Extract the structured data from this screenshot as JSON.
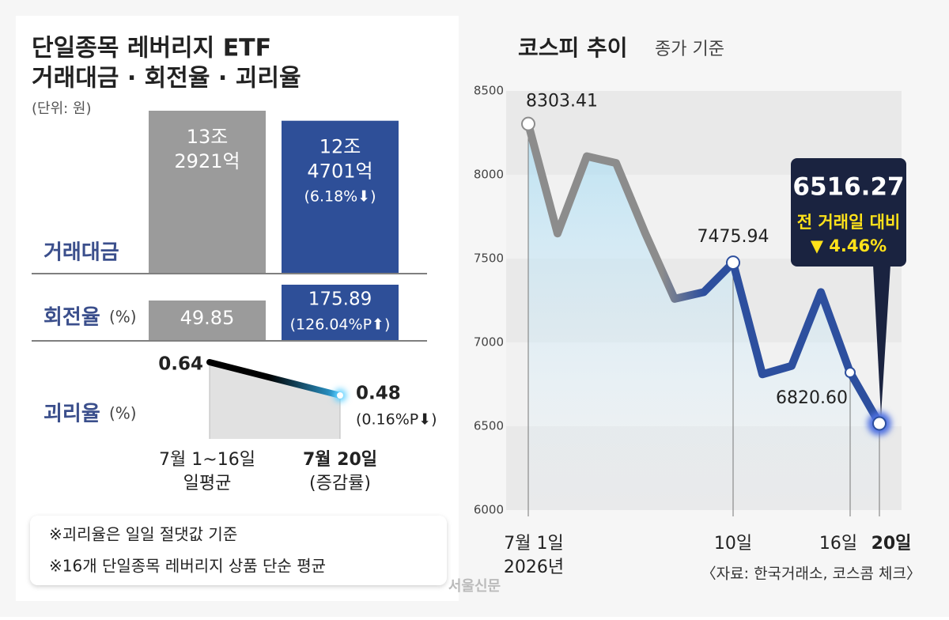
{
  "chart_data": [
    {
      "type": "comparison",
      "title": [
        "단일종목 레버리지 ETF",
        "거래대금 · 회전율 · 괴리율"
      ],
      "unit": "(단위: 원)",
      "categories": [
        [
          "7월 1~16일",
          "일평균"
        ],
        [
          "7월 20일",
          "(증감률)"
        ]
      ],
      "colors": [
        "#9b9b9b",
        "#2e4f98"
      ],
      "metrics": [
        {
          "name": "거래대금",
          "values": [
            132921,
            124701
          ],
          "value_labels": [
            [
              "13조",
              "2921억"
            ],
            [
              "12조",
              "4701억"
            ]
          ],
          "change": {
            "value": -6.18,
            "label": "(6.18%⬇)"
          }
        },
        {
          "name": "회전율",
          "unit": "(%)",
          "values": [
            49.85,
            175.89
          ],
          "change": {
            "value": 126.04,
            "label": "(126.04%P⬆)"
          }
        },
        {
          "name": "괴리율",
          "unit": "(%)",
          "values": [
            0.64,
            0.48
          ],
          "change": {
            "value": -0.16,
            "label": "(0.16%P⬇)"
          }
        }
      ],
      "notes": [
        "※괴리율은 일일 절댓값 기준",
        "※16개 단일종목 레버리지 상품 단순 평균"
      ]
    },
    {
      "type": "line",
      "title": "코스피 추이",
      "subtitle": "종가 기준",
      "categories": [
        "7월 1일",
        null,
        null,
        null,
        null,
        null,
        null,
        "10일",
        null,
        null,
        null,
        "16일",
        "20일"
      ],
      "x_year": "2026년",
      "values": [
        8303.41,
        7650,
        8110,
        8070,
        7650,
        7260,
        7300,
        7475.94,
        6810,
        6860,
        7300,
        6820.6,
        6516.27
      ],
      "value_labels": [
        "8303.41",
        null,
        null,
        null,
        null,
        null,
        null,
        "7475.94",
        null,
        null,
        null,
        "6820.60",
        "6516.27"
      ],
      "ylim": [
        6000,
        8500
      ],
      "yticks": [
        6000,
        6500,
        7000,
        7500,
        8000,
        8500
      ],
      "grid": true,
      "colors": [
        "#8c8c8c",
        "#2d4f9e"
      ],
      "change_text": "전 거래일  대비",
      "change": {
        "value": -4.46,
        "label": "▼ 4.46%"
      },
      "source": "〈자료: 한국거래소, 코스콤 체크〉"
    }
  ],
  "credit": "서울신문"
}
